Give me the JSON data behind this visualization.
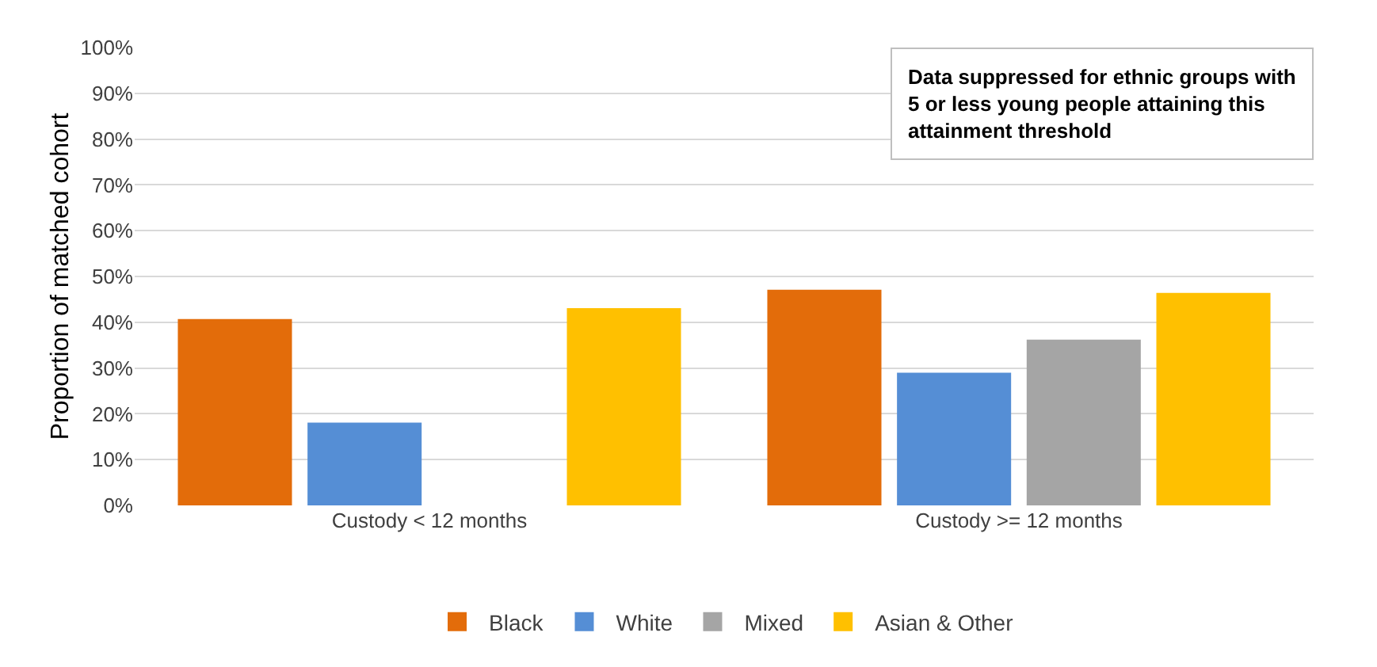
{
  "chart_data": {
    "type": "bar",
    "ylabel": "Proportion of matched cohort",
    "categories": [
      "Custody < 12 months",
      "Custody >= 12 months"
    ],
    "series": [
      {
        "name": "Black",
        "color": "#e36c0a",
        "values": [
          40.7,
          47.1
        ]
      },
      {
        "name": "White",
        "color": "#558ed5",
        "values": [
          18.1,
          29.0
        ]
      },
      {
        "name": "Mixed",
        "color": "#a5a5a5",
        "values": [
          null,
          36.2
        ]
      },
      {
        "name": "Asian & Other",
        "color": "#ffc000",
        "values": [
          43.1,
          46.4
        ]
      }
    ],
    "ylim": [
      0,
      100
    ],
    "yticks": [
      {
        "value": 0,
        "label": "0%"
      },
      {
        "value": 10,
        "label": "10%"
      },
      {
        "value": 20,
        "label": "20%"
      },
      {
        "value": 30,
        "label": "30%"
      },
      {
        "value": 40,
        "label": "40%"
      },
      {
        "value": 50,
        "label": "50%"
      },
      {
        "value": 60,
        "label": "60%"
      },
      {
        "value": 70,
        "label": "70%"
      },
      {
        "value": 80,
        "label": "80%"
      },
      {
        "value": 90,
        "label": "90%"
      },
      {
        "value": 100,
        "label": "100%"
      }
    ],
    "grid": "y",
    "legend": "bottom",
    "annotations": [
      "Data suppressed for ethnic groups with 5 or less young people attaining this attainment threshold"
    ]
  }
}
